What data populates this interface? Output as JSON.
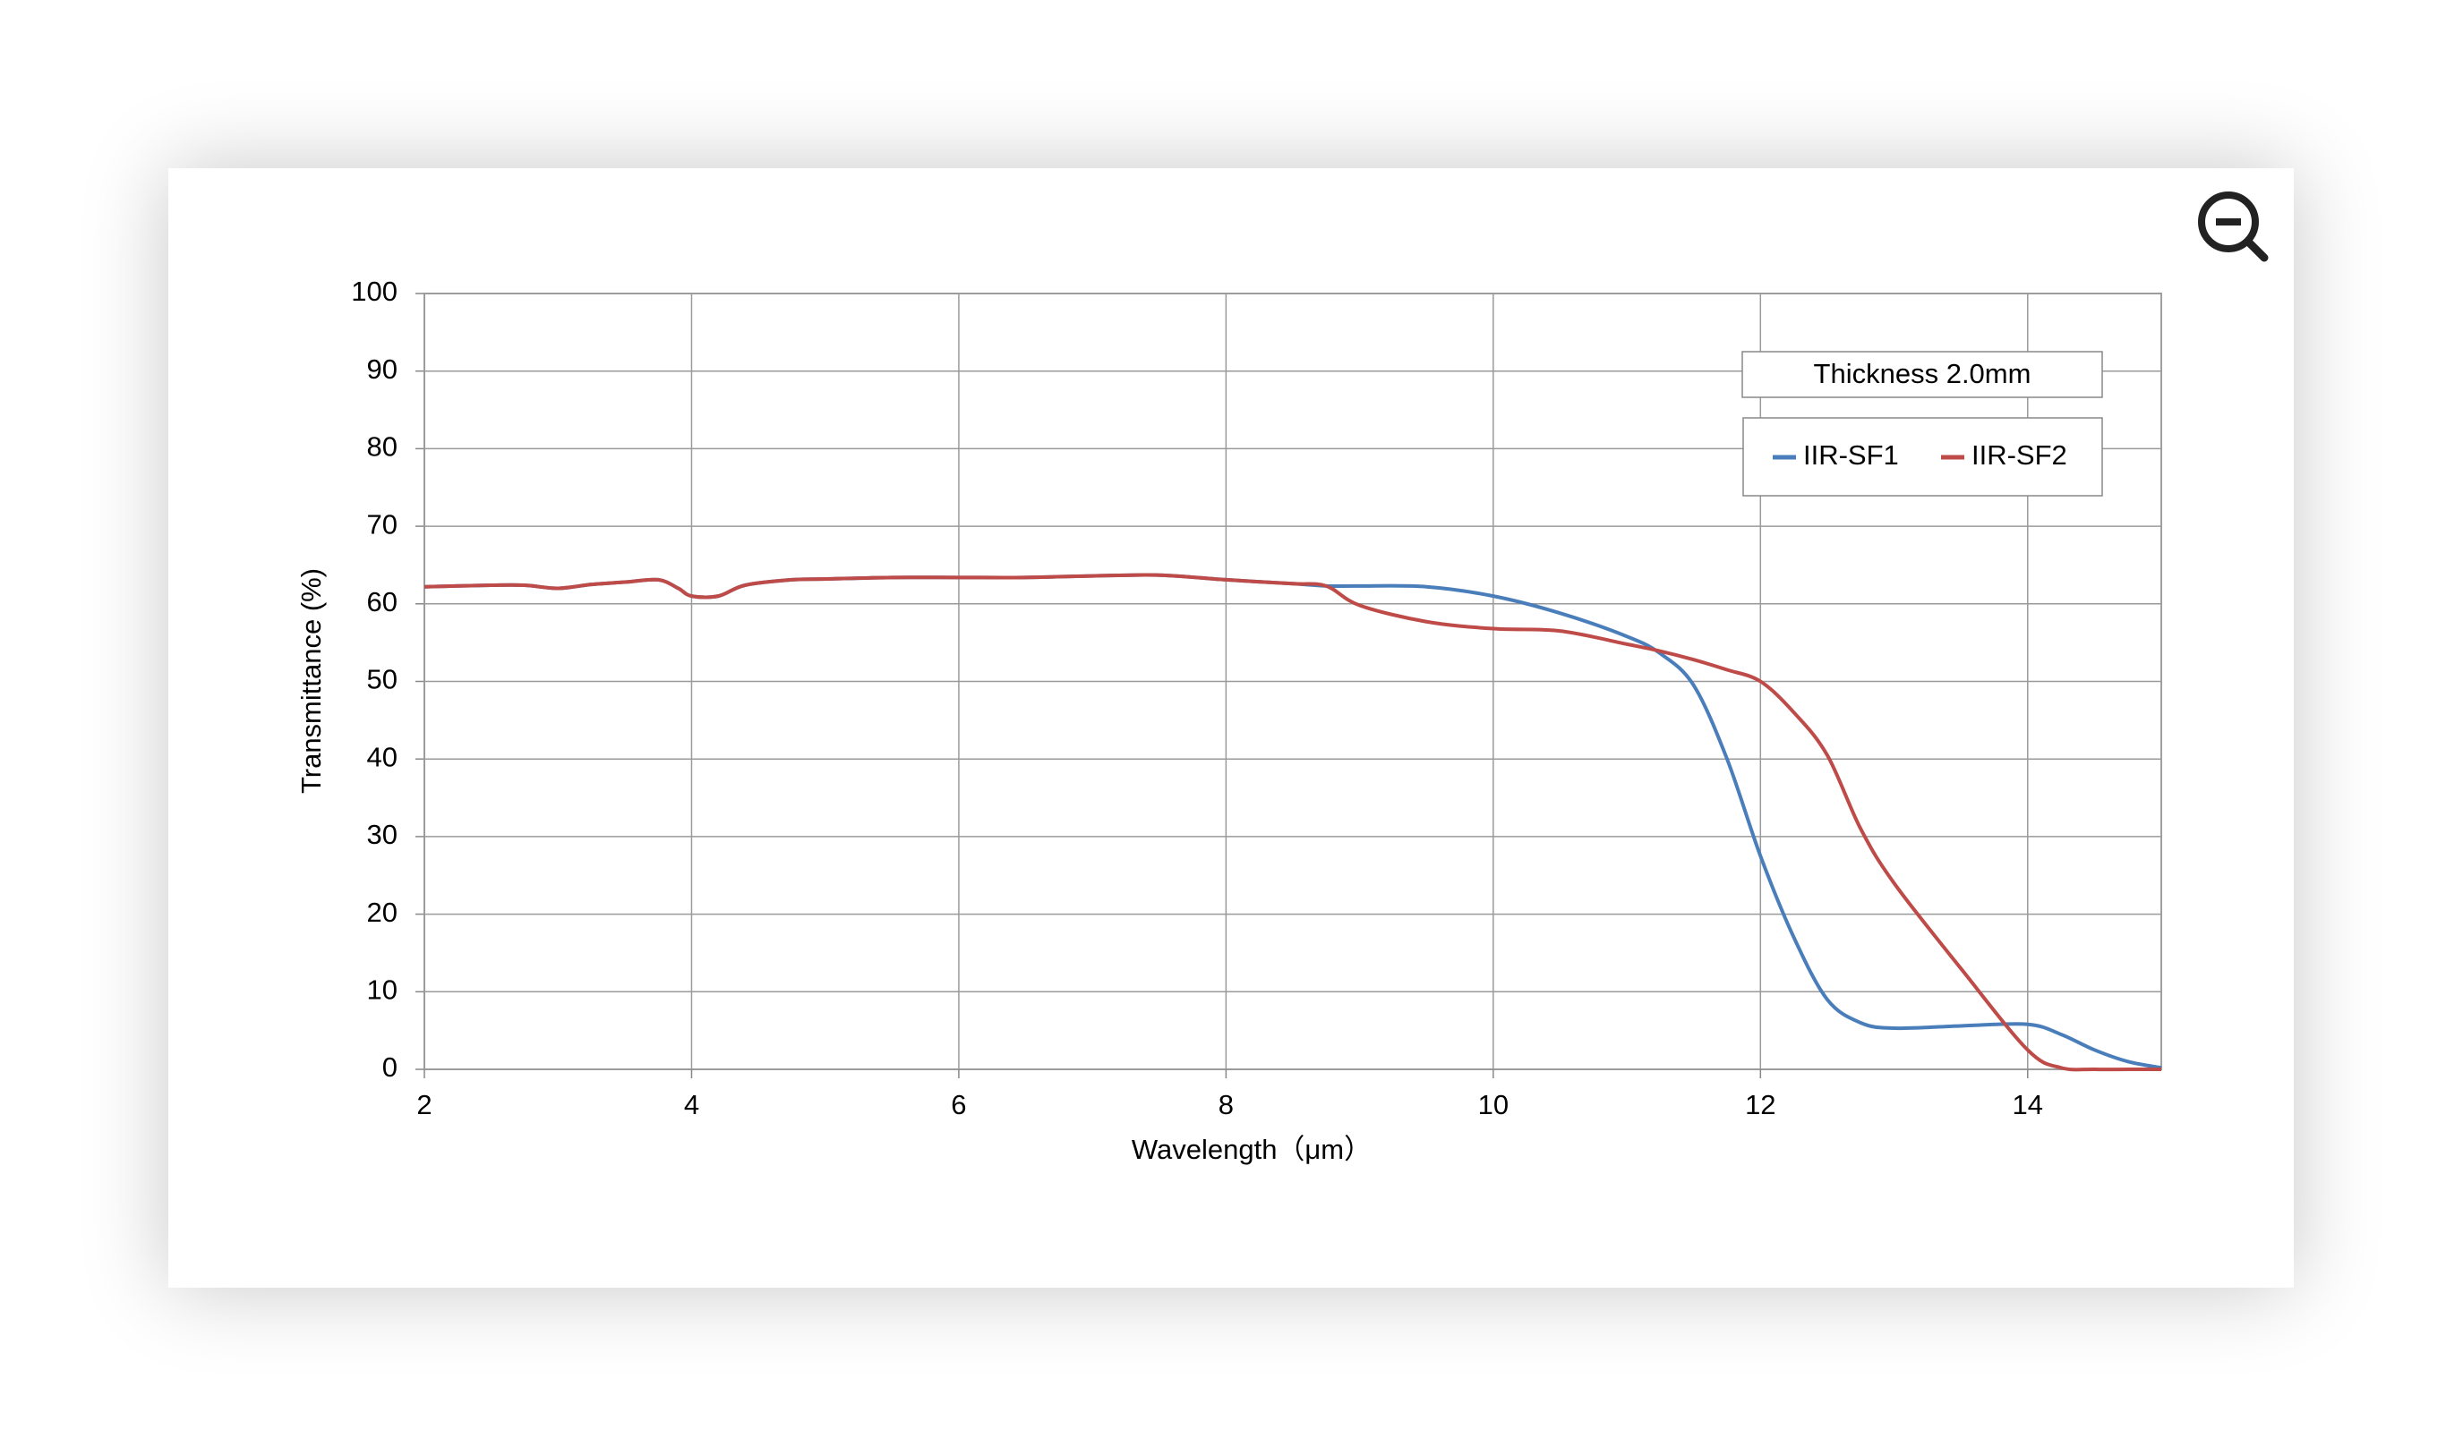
{
  "chart_data": {
    "type": "line",
    "x_label": "Wavelength（μm）",
    "y_label": "Transmittance (%)",
    "annotation": "Thickness  2.0mm",
    "x": [
      2,
      2.5,
      2.75,
      3,
      3.25,
      3.5,
      3.75,
      3.9,
      4,
      4.2,
      4.4,
      4.75,
      5,
      5.5,
      6,
      6.5,
      7,
      7.5,
      8,
      8.5,
      8.75,
      9,
      9.5,
      10,
      10.5,
      11,
      11.25,
      11.5,
      11.75,
      12,
      12.25,
      12.5,
      12.75,
      13,
      13.5,
      14,
      14.25,
      14.5,
      14.75,
      15
    ],
    "series": [
      {
        "name": "IIR-SF1",
        "color": "#4a7ebb",
        "values": [
          62.2,
          62.4,
          62.4,
          62,
          62.5,
          62.8,
          63.1,
          62,
          61,
          61,
          62.4,
          63.1,
          63.2,
          63.4,
          63.4,
          63.4,
          63.6,
          63.7,
          63.1,
          62.6,
          62.3,
          62.3,
          62.2,
          61,
          58.8,
          55.8,
          53.6,
          49.5,
          40,
          27.5,
          17,
          9,
          6,
          5.3,
          5.6,
          5.8,
          4.5,
          2.5,
          1,
          0.2
        ]
      },
      {
        "name": "IIR-SF2",
        "color": "#be4b48",
        "values": [
          62.2,
          62.4,
          62.4,
          62,
          62.5,
          62.8,
          63.1,
          62,
          61,
          61,
          62.4,
          63.1,
          63.2,
          63.4,
          63.4,
          63.4,
          63.6,
          63.7,
          63.1,
          62.6,
          62.3,
          59.8,
          57.7,
          56.8,
          56.5,
          54.8,
          53.9,
          52.8,
          51.5,
          50,
          46,
          40.5,
          31,
          24,
          13,
          2.5,
          0.2,
          0,
          0,
          0
        ]
      }
    ],
    "xlim": [
      2,
      15
    ],
    "xticks": [
      2,
      4,
      6,
      8,
      10,
      12,
      14
    ],
    "ylim": [
      0,
      100
    ],
    "yticks": [
      0,
      10,
      20,
      30,
      40,
      50,
      60,
      70,
      80,
      90,
      100
    ],
    "grid": true,
    "legend": "upper right"
  }
}
